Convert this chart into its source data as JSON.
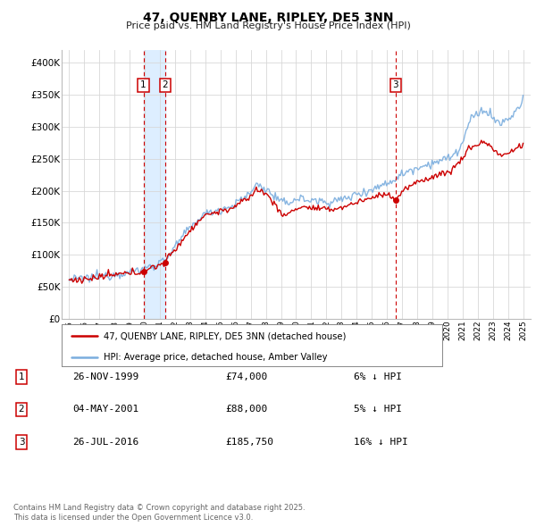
{
  "title": "47, QUENBY LANE, RIPLEY, DE5 3NN",
  "subtitle": "Price paid vs. HM Land Registry's House Price Index (HPI)",
  "legend_line1": "47, QUENBY LANE, RIPLEY, DE5 3NN (detached house)",
  "legend_line2": "HPI: Average price, detached house, Amber Valley",
  "footnote1": "Contains HM Land Registry data © Crown copyright and database right 2025.",
  "footnote2": "This data is licensed under the Open Government Licence v3.0.",
  "sale_color": "#cc0000",
  "hpi_color": "#7aadde",
  "shade_color": "#ddeeff",
  "ylim_min": 0,
  "ylim_max": 420000,
  "yticks": [
    0,
    50000,
    100000,
    150000,
    200000,
    250000,
    300000,
    350000,
    400000
  ],
  "ytick_labels": [
    "£0",
    "£50K",
    "£100K",
    "£150K",
    "£200K",
    "£250K",
    "£300K",
    "£350K",
    "£400K"
  ],
  "transactions": [
    {
      "num": 1,
      "date_label": "26-NOV-1999",
      "year": 1999.91,
      "price": 74000,
      "pct": "6%",
      "dir": "↓"
    },
    {
      "num": 2,
      "date_label": "04-MAY-2001",
      "year": 2001.34,
      "price": 88000,
      "pct": "5%",
      "dir": "↓"
    },
    {
      "num": 3,
      "date_label": "26-JUL-2016",
      "year": 2016.57,
      "price": 185750,
      "pct": "16%",
      "dir": "↓"
    }
  ],
  "shade_x1": 1999.91,
  "shade_x2": 2001.34,
  "xlim_min": 1994.5,
  "xlim_max": 2025.5,
  "xticks": [
    1995,
    1996,
    1997,
    1998,
    1999,
    2000,
    2001,
    2002,
    2003,
    2004,
    2005,
    2006,
    2007,
    2008,
    2009,
    2010,
    2011,
    2012,
    2013,
    2014,
    2015,
    2016,
    2017,
    2018,
    2019,
    2020,
    2021,
    2022,
    2023,
    2024,
    2025
  ]
}
